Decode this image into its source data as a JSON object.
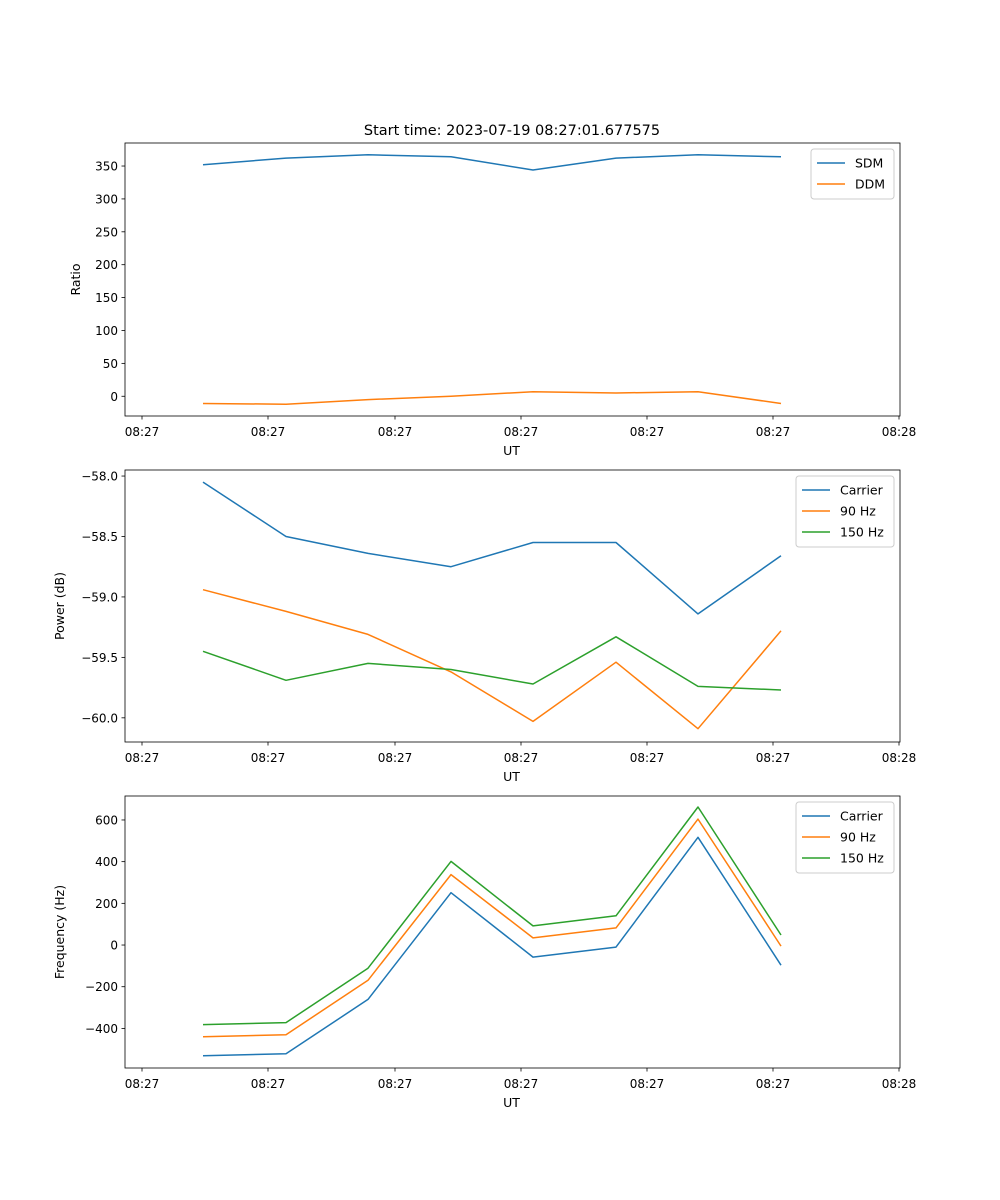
{
  "figure_title": "Start time: 2023-07-19 08:27:01.677575",
  "chart_data": [
    {
      "type": "line",
      "title": "Start time: 2023-07-19 08:27:01.677575",
      "xlabel": "UT",
      "ylabel": "Ratio",
      "x_tick_labels": [
        "08:27",
        "08:27",
        "08:27",
        "08:27",
        "08:27",
        "08:27",
        "08:28"
      ],
      "y_ticks": [
        0,
        50,
        100,
        150,
        200,
        250,
        300,
        350
      ],
      "ylim": [
        -30,
        385
      ],
      "legend_position": "top-right",
      "grid": false,
      "series": [
        {
          "name": "SDM",
          "color": "#1f77b4",
          "values": [
            352,
            362,
            367,
            364,
            344,
            362,
            367,
            364
          ]
        },
        {
          "name": "DDM",
          "color": "#ff7f0e",
          "values": [
            -11,
            -12,
            -5,
            0,
            7,
            5,
            7,
            -11
          ]
        }
      ]
    },
    {
      "type": "line",
      "title": "",
      "xlabel": "UT",
      "ylabel": "Power (dB)",
      "x_tick_labels": [
        "08:27",
        "08:27",
        "08:27",
        "08:27",
        "08:27",
        "08:27",
        "08:28"
      ],
      "y_ticks": [
        -58.0,
        -58.5,
        -59.0,
        -59.5,
        -60.0
      ],
      "y_tick_labels": [
        "−58.0",
        "−58.5",
        "−59.0",
        "−59.5",
        "−60.0"
      ],
      "ylim": [
        -60.2,
        -57.95
      ],
      "legend_position": "top-right",
      "grid": false,
      "series": [
        {
          "name": "Carrier",
          "color": "#1f77b4",
          "values": [
            -58.05,
            -58.5,
            -58.64,
            -58.75,
            -58.55,
            -58.55,
            -59.14,
            -58.66
          ]
        },
        {
          "name": "90 Hz",
          "color": "#ff7f0e",
          "values": [
            -58.94,
            -59.12,
            -59.31,
            -59.62,
            -60.03,
            -59.54,
            -60.09,
            -59.28
          ]
        },
        {
          "name": "150 Hz",
          "color": "#2ca02c",
          "values": [
            -59.45,
            -59.69,
            -59.55,
            -59.6,
            -59.72,
            -59.33,
            -59.74,
            -59.77
          ]
        }
      ]
    },
    {
      "type": "line",
      "title": "",
      "xlabel": "UT",
      "ylabel": "Frequency (Hz)",
      "x_tick_labels": [
        "08:27",
        "08:27",
        "08:27",
        "08:27",
        "08:27",
        "08:27",
        "08:28"
      ],
      "y_ticks": [
        -400,
        -200,
        0,
        200,
        400,
        600
      ],
      "y_tick_labels": [
        "−400",
        "−200",
        "0",
        "200",
        "400",
        "600"
      ],
      "ylim": [
        -590,
        715
      ],
      "legend_position": "top-right",
      "grid": false,
      "series": [
        {
          "name": "Carrier",
          "color": "#1f77b4",
          "values": [
            -531,
            -522,
            -261,
            251,
            -58,
            -10,
            517,
            -97
          ]
        },
        {
          "name": "90 Hz",
          "color": "#ff7f0e",
          "values": [
            -440,
            -430,
            -169,
            338,
            34,
            82,
            604,
            -5
          ]
        },
        {
          "name": "150 Hz",
          "color": "#2ca02c",
          "values": [
            -382,
            -372,
            -111,
            401,
            92,
            140,
            662,
            48
          ]
        }
      ]
    }
  ]
}
